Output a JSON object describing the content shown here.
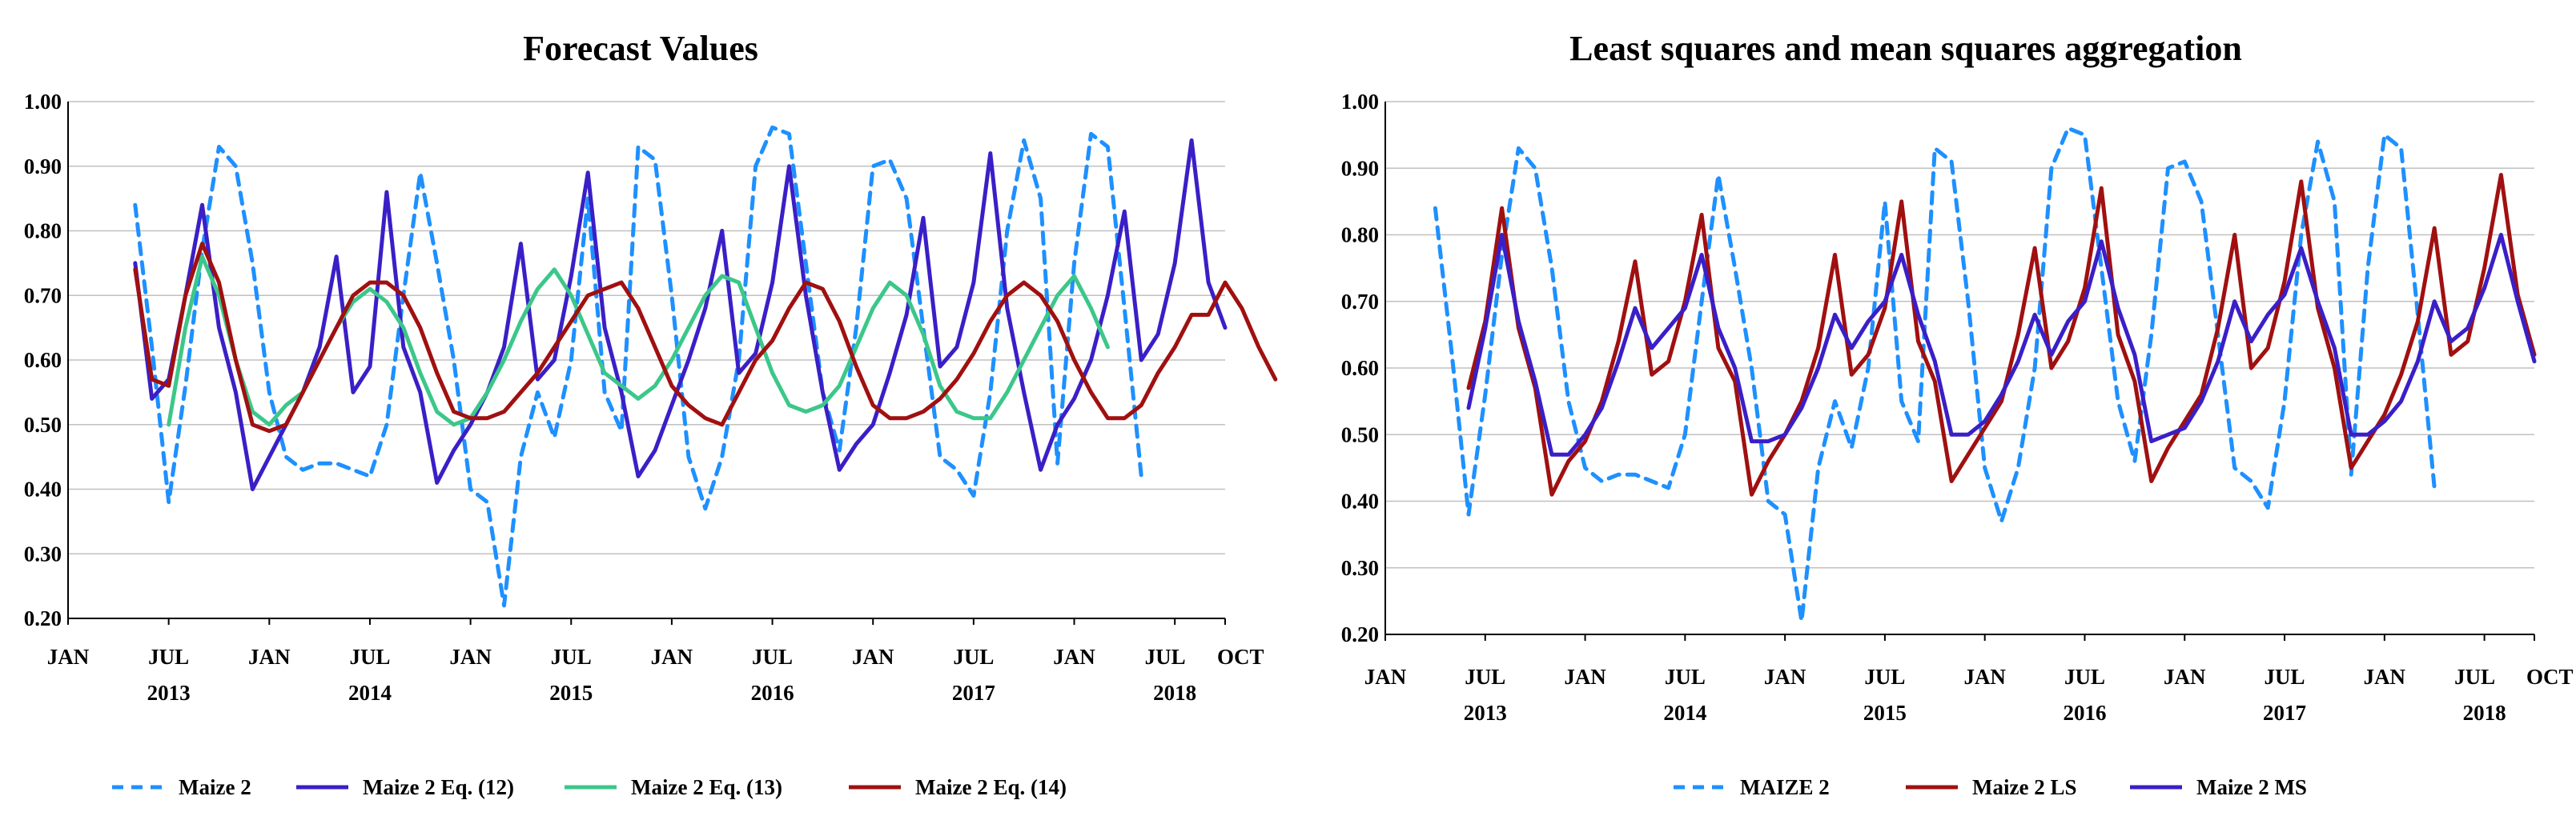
{
  "chart_data": [
    {
      "type": "line",
      "title": "Forecast Values",
      "xlabel": "",
      "ylabel": "",
      "ylim": [
        0.2,
        1.0
      ],
      "yticks": [
        "0.20",
        "0.30",
        "0.40",
        "0.50",
        "0.60",
        "0.70",
        "0.80",
        "0.90",
        "1.00"
      ],
      "xticks": [
        {
          "label": "JAN",
          "m": 0
        },
        {
          "label": "JUL",
          "m": 6
        },
        {
          "label": "JAN",
          "m": 12
        },
        {
          "label": "JUL",
          "m": 18
        },
        {
          "label": "JAN",
          "m": 24
        },
        {
          "label": "JUL",
          "m": 30
        },
        {
          "label": "JAN",
          "m": 36
        },
        {
          "label": "JUL",
          "m": 42
        },
        {
          "label": "JAN",
          "m": 48
        },
        {
          "label": "JUL",
          "m": 54
        },
        {
          "label": "JAN",
          "m": 60
        },
        {
          "label": "JUL",
          "m": 66
        },
        {
          "label": "OCT",
          "m": 69
        }
      ],
      "years": [
        {
          "label": "2013",
          "m": 6
        },
        {
          "label": "2014",
          "m": 18
        },
        {
          "label": "2015",
          "m": 30
        },
        {
          "label": "2016",
          "m": 42
        },
        {
          "label": "2017",
          "m": 54
        },
        {
          "label": "2018",
          "m": 66
        }
      ],
      "x_range": [
        0,
        69
      ],
      "series": [
        {
          "name": "Maize 2",
          "color": "#1E90FF",
          "dash": "dashed",
          "start": 4,
          "values": [
            0.84,
            0.62,
            0.38,
            0.56,
            0.77,
            0.93,
            0.9,
            0.75,
            0.55,
            0.45,
            0.43,
            0.44,
            0.44,
            0.43,
            0.42,
            0.5,
            0.7,
            0.89,
            0.75,
            0.6,
            0.4,
            0.38,
            0.22,
            0.45,
            0.55,
            0.48,
            0.6,
            0.85,
            0.55,
            0.49,
            0.93,
            0.91,
            0.7,
            0.45,
            0.37,
            0.45,
            0.6,
            0.9,
            0.96,
            0.95,
            0.75,
            0.55,
            0.46,
            0.65,
            0.9,
            0.91,
            0.85,
            0.65,
            0.45,
            0.43,
            0.39,
            0.55,
            0.8,
            0.94,
            0.85,
            0.44,
            0.75,
            0.95,
            0.93,
            0.68,
            0.42
          ]
        },
        {
          "name": "Maize 2 Eq. (12)",
          "color": "#3A1FC7",
          "dash": "solid",
          "start": 4,
          "values": [
            0.75,
            0.54,
            0.57,
            0.7,
            0.84,
            0.65,
            0.55,
            0.4,
            0.45,
            0.5,
            0.55,
            0.62,
            0.76,
            0.55,
            0.59,
            0.86,
            0.62,
            0.55,
            0.41,
            0.46,
            0.5,
            0.55,
            0.62,
            0.78,
            0.57,
            0.6,
            0.73,
            0.89,
            0.65,
            0.55,
            0.42,
            0.46,
            0.53,
            0.6,
            0.68,
            0.8,
            0.58,
            0.61,
            0.72,
            0.9,
            0.7,
            0.55,
            0.43,
            0.47,
            0.5,
            0.58,
            0.67,
            0.82,
            0.59,
            0.62,
            0.72,
            0.92,
            0.68,
            0.55,
            0.43,
            0.5,
            0.54,
            0.6,
            0.7,
            0.83,
            0.6,
            0.64,
            0.75,
            0.94,
            0.72,
            0.65
          ]
        },
        {
          "name": "Maize 2 Eq. (13)",
          "color": "#3CC78A",
          "dash": "solid",
          "start": 6,
          "values": [
            0.5,
            0.65,
            0.76,
            0.7,
            0.6,
            0.52,
            0.5,
            0.53,
            0.55,
            0.6,
            0.65,
            0.69,
            0.71,
            0.69,
            0.65,
            0.58,
            0.52,
            0.5,
            0.51,
            0.55,
            0.6,
            0.66,
            0.71,
            0.74,
            0.7,
            0.64,
            0.58,
            0.56,
            0.54,
            0.56,
            0.6,
            0.65,
            0.7,
            0.73,
            0.72,
            0.65,
            0.58,
            0.53,
            0.52,
            0.53,
            0.56,
            0.62,
            0.68,
            0.72,
            0.7,
            0.64,
            0.56,
            0.52,
            0.51,
            0.51,
            0.55,
            0.6,
            0.65,
            0.7,
            0.73,
            0.68,
            0.62
          ]
        },
        {
          "name": "Maize 2 Eq. (14)",
          "color": "#A01010",
          "dash": "solid",
          "start": 4,
          "values": [
            0.74,
            0.57,
            0.56,
            0.7,
            0.78,
            0.72,
            0.6,
            0.5,
            0.49,
            0.5,
            0.55,
            0.6,
            0.65,
            0.7,
            0.72,
            0.72,
            0.7,
            0.65,
            0.58,
            0.52,
            0.51,
            0.51,
            0.52,
            0.55,
            0.58,
            0.62,
            0.66,
            0.7,
            0.71,
            0.72,
            0.68,
            0.62,
            0.56,
            0.53,
            0.51,
            0.5,
            0.55,
            0.6,
            0.63,
            0.68,
            0.72,
            0.71,
            0.66,
            0.59,
            0.53,
            0.51,
            0.51,
            0.52,
            0.54,
            0.57,
            0.61,
            0.66,
            0.7,
            0.72,
            0.7,
            0.66,
            0.6,
            0.55,
            0.51,
            0.51,
            0.53,
            0.58,
            0.62,
            0.67,
            0.67,
            0.72,
            0.68,
            0.62,
            0.57
          ]
        }
      ]
    },
    {
      "type": "line",
      "title": "Least squares and mean squares aggregation",
      "xlabel": "",
      "ylabel": "",
      "ylim": [
        0.2,
        1.0
      ],
      "yticks": [
        "0.20",
        "0.30",
        "0.40",
        "0.50",
        "0.60",
        "0.70",
        "0.80",
        "0.90",
        "1.00"
      ],
      "xticks": [
        {
          "label": "JAN",
          "m": 0
        },
        {
          "label": "JUL",
          "m": 6
        },
        {
          "label": "JAN",
          "m": 12
        },
        {
          "label": "JUL",
          "m": 18
        },
        {
          "label": "JAN",
          "m": 24
        },
        {
          "label": "JUL",
          "m": 30
        },
        {
          "label": "JAN",
          "m": 36
        },
        {
          "label": "JUL",
          "m": 42
        },
        {
          "label": "JAN",
          "m": 48
        },
        {
          "label": "JUL",
          "m": 54
        },
        {
          "label": "JAN",
          "m": 60
        },
        {
          "label": "JUL",
          "m": 66
        },
        {
          "label": "OCT",
          "m": 69
        }
      ],
      "years": [
        {
          "label": "2013",
          "m": 6
        },
        {
          "label": "2014",
          "m": 18
        },
        {
          "label": "2015",
          "m": 30
        },
        {
          "label": "2016",
          "m": 42
        },
        {
          "label": "2017",
          "m": 54
        },
        {
          "label": "2018",
          "m": 66
        }
      ],
      "x_range": [
        0,
        69
      ],
      "series": [
        {
          "name": "MAIZE 2",
          "color": "#1E90FF",
          "dash": "dashed",
          "start": 3,
          "values": [
            0.84,
            0.62,
            0.38,
            0.56,
            0.77,
            0.93,
            0.9,
            0.75,
            0.55,
            0.45,
            0.43,
            0.44,
            0.44,
            0.43,
            0.42,
            0.5,
            0.7,
            0.89,
            0.75,
            0.6,
            0.4,
            0.38,
            0.22,
            0.45,
            0.55,
            0.48,
            0.6,
            0.85,
            0.55,
            0.49,
            0.93,
            0.91,
            0.7,
            0.45,
            0.37,
            0.45,
            0.6,
            0.9,
            0.96,
            0.95,
            0.75,
            0.55,
            0.46,
            0.65,
            0.9,
            0.91,
            0.85,
            0.65,
            0.45,
            0.43,
            0.39,
            0.55,
            0.8,
            0.94,
            0.85,
            0.44,
            0.75,
            0.95,
            0.93,
            0.68,
            0.42
          ]
        },
        {
          "name": "Maize 2 LS",
          "color": "#A01010",
          "dash": "solid",
          "start": 5,
          "values": [
            0.57,
            0.67,
            0.84,
            0.66,
            0.57,
            0.41,
            0.46,
            0.49,
            0.55,
            0.64,
            0.76,
            0.59,
            0.61,
            0.7,
            0.83,
            0.63,
            0.58,
            0.41,
            0.46,
            0.5,
            0.55,
            0.63,
            0.77,
            0.59,
            0.62,
            0.69,
            0.85,
            0.64,
            0.58,
            0.43,
            0.47,
            0.51,
            0.55,
            0.65,
            0.78,
            0.6,
            0.64,
            0.72,
            0.87,
            0.65,
            0.58,
            0.43,
            0.48,
            0.52,
            0.56,
            0.66,
            0.8,
            0.6,
            0.63,
            0.73,
            0.88,
            0.69,
            0.6,
            0.45,
            0.49,
            0.53,
            0.59,
            0.67,
            0.81,
            0.62,
            0.64,
            0.75,
            0.89,
            0.71,
            0.62
          ]
        },
        {
          "name": "Maize 2 MS",
          "color": "#3A1FC7",
          "dash": "solid",
          "start": 5,
          "values": [
            0.54,
            0.66,
            0.8,
            0.67,
            0.58,
            0.47,
            0.47,
            0.5,
            0.54,
            0.61,
            0.69,
            0.63,
            0.66,
            0.69,
            0.77,
            0.66,
            0.6,
            0.49,
            0.49,
            0.5,
            0.54,
            0.6,
            0.68,
            0.63,
            0.67,
            0.7,
            0.77,
            0.68,
            0.61,
            0.5,
            0.5,
            0.52,
            0.56,
            0.61,
            0.68,
            0.62,
            0.67,
            0.7,
            0.79,
            0.69,
            0.62,
            0.49,
            0.5,
            0.51,
            0.55,
            0.61,
            0.7,
            0.64,
            0.68,
            0.71,
            0.78,
            0.7,
            0.63,
            0.5,
            0.5,
            0.52,
            0.55,
            0.61,
            0.7,
            0.64,
            0.66,
            0.72,
            0.8,
            0.7,
            0.61
          ]
        }
      ]
    }
  ]
}
